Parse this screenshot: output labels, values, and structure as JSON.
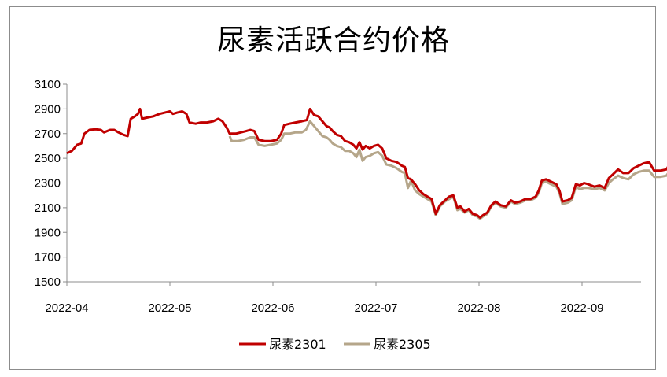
{
  "chart_data": {
    "type": "line",
    "title": "尿素活跃合约价格",
    "xlabel": "",
    "ylabel": "",
    "ylim": [
      1500,
      3100
    ],
    "yticks": [
      3100,
      2900,
      2700,
      2500,
      2300,
      2100,
      1900,
      1700,
      1500
    ],
    "xticks": [
      "2022-04",
      "2022-05",
      "2022-06",
      "2022-07",
      "2022-08",
      "2022-09"
    ],
    "xrange_months": [
      0,
      5.6
    ],
    "grid": false,
    "legend_position": "bottom",
    "series": [
      {
        "name": "尿素2301",
        "color": "#c00000",
        "points": [
          [
            0.0,
            2540
          ],
          [
            0.05,
            2560
          ],
          [
            0.1,
            2610
          ],
          [
            0.14,
            2620
          ],
          [
            0.17,
            2700
          ],
          [
            0.22,
            2730
          ],
          [
            0.28,
            2735
          ],
          [
            0.33,
            2730
          ],
          [
            0.36,
            2710
          ],
          [
            0.42,
            2730
          ],
          [
            0.46,
            2730
          ],
          [
            0.5,
            2710
          ],
          [
            0.55,
            2690
          ],
          [
            0.59,
            2680
          ],
          [
            0.62,
            2820
          ],
          [
            0.66,
            2840
          ],
          [
            0.69,
            2860
          ],
          [
            0.71,
            2900
          ],
          [
            0.73,
            2820
          ],
          [
            0.78,
            2830
          ],
          [
            0.84,
            2840
          ],
          [
            0.9,
            2860
          ],
          [
            0.95,
            2870
          ],
          [
            1.0,
            2880
          ],
          [
            1.03,
            2860
          ],
          [
            1.07,
            2870
          ],
          [
            1.12,
            2880
          ],
          [
            1.16,
            2860
          ],
          [
            1.19,
            2790
          ],
          [
            1.25,
            2780
          ],
          [
            1.3,
            2790
          ],
          [
            1.36,
            2790
          ],
          [
            1.42,
            2800
          ],
          [
            1.47,
            2820
          ],
          [
            1.51,
            2800
          ],
          [
            1.55,
            2750
          ],
          [
            1.58,
            2700
          ],
          [
            1.64,
            2700
          ],
          [
            1.69,
            2710
          ],
          [
            1.74,
            2720
          ],
          [
            1.78,
            2730
          ],
          [
            1.82,
            2720
          ],
          [
            1.86,
            2650
          ],
          [
            1.92,
            2640
          ],
          [
            1.98,
            2640
          ],
          [
            2.04,
            2650
          ],
          [
            2.08,
            2700
          ],
          [
            2.11,
            2770
          ],
          [
            2.16,
            2780
          ],
          [
            2.22,
            2790
          ],
          [
            2.28,
            2800
          ],
          [
            2.33,
            2810
          ],
          [
            2.36,
            2900
          ],
          [
            2.4,
            2850
          ],
          [
            2.44,
            2840
          ],
          [
            2.48,
            2800
          ],
          [
            2.52,
            2760
          ],
          [
            2.55,
            2750
          ],
          [
            2.58,
            2720
          ],
          [
            2.62,
            2690
          ],
          [
            2.66,
            2680
          ],
          [
            2.7,
            2640
          ],
          [
            2.74,
            2630
          ],
          [
            2.78,
            2610
          ],
          [
            2.81,
            2580
          ],
          [
            2.84,
            2630
          ],
          [
            2.87,
            2570
          ],
          [
            2.9,
            2600
          ],
          [
            2.94,
            2580
          ],
          [
            2.98,
            2600
          ],
          [
            3.02,
            2610
          ],
          [
            3.06,
            2580
          ],
          [
            3.1,
            2500
          ],
          [
            3.15,
            2480
          ],
          [
            3.2,
            2470
          ],
          [
            3.25,
            2440
          ],
          [
            3.28,
            2430
          ],
          [
            3.31,
            2340
          ],
          [
            3.34,
            2330
          ],
          [
            3.38,
            2290
          ],
          [
            3.42,
            2240
          ],
          [
            3.46,
            2210
          ],
          [
            3.5,
            2190
          ],
          [
            3.54,
            2170
          ],
          [
            3.58,
            2050
          ],
          [
            3.62,
            2120
          ],
          [
            3.67,
            2160
          ],
          [
            3.71,
            2190
          ],
          [
            3.75,
            2200
          ],
          [
            3.79,
            2100
          ],
          [
            3.82,
            2110
          ],
          [
            3.86,
            2070
          ],
          [
            3.9,
            2090
          ],
          [
            3.94,
            2050
          ],
          [
            3.98,
            2040
          ],
          [
            4.01,
            2020
          ],
          [
            4.04,
            2040
          ],
          [
            4.08,
            2060
          ],
          [
            4.12,
            2120
          ],
          [
            4.16,
            2150
          ],
          [
            4.21,
            2120
          ],
          [
            4.26,
            2110
          ],
          [
            4.31,
            2160
          ],
          [
            4.35,
            2140
          ],
          [
            4.4,
            2150
          ],
          [
            4.45,
            2170
          ],
          [
            4.5,
            2170
          ],
          [
            4.55,
            2190
          ],
          [
            4.58,
            2240
          ],
          [
            4.61,
            2320
          ],
          [
            4.65,
            2330
          ],
          [
            4.7,
            2310
          ],
          [
            4.75,
            2290
          ],
          [
            4.78,
            2240
          ],
          [
            4.81,
            2150
          ],
          [
            4.86,
            2160
          ],
          [
            4.9,
            2180
          ],
          [
            4.94,
            2290
          ],
          [
            4.98,
            2280
          ],
          [
            5.02,
            2300
          ],
          [
            5.06,
            2290
          ],
          [
            5.12,
            2270
          ],
          [
            5.17,
            2280
          ],
          [
            5.22,
            2260
          ],
          [
            5.26,
            2340
          ],
          [
            5.3,
            2370
          ],
          [
            5.35,
            2410
          ],
          [
            5.4,
            2380
          ],
          [
            5.45,
            2380
          ],
          [
            5.5,
            2420
          ],
          [
            5.55,
            2440
          ],
          [
            5.6,
            2460
          ],
          [
            5.65,
            2470
          ],
          [
            5.7,
            2400
          ],
          [
            5.76,
            2400
          ],
          [
            5.82,
            2410
          ],
          [
            5.86,
            2470
          ],
          [
            5.9,
            2450
          ],
          [
            5.95,
            2430
          ],
          [
            6.0,
            2420
          ],
          [
            6.03,
            2440
          ]
        ]
      },
      {
        "name": "尿素2305",
        "color": "#b5a68a",
        "points": [
          [
            1.58,
            2680
          ],
          [
            1.6,
            2640
          ],
          [
            1.66,
            2640
          ],
          [
            1.72,
            2650
          ],
          [
            1.78,
            2670
          ],
          [
            1.82,
            2670
          ],
          [
            1.86,
            2610
          ],
          [
            1.92,
            2600
          ],
          [
            1.98,
            2610
          ],
          [
            2.04,
            2620
          ],
          [
            2.08,
            2650
          ],
          [
            2.11,
            2700
          ],
          [
            2.16,
            2700
          ],
          [
            2.22,
            2710
          ],
          [
            2.28,
            2710
          ],
          [
            2.32,
            2730
          ],
          [
            2.36,
            2800
          ],
          [
            2.4,
            2760
          ],
          [
            2.44,
            2720
          ],
          [
            2.48,
            2680
          ],
          [
            2.52,
            2670
          ],
          [
            2.55,
            2650
          ],
          [
            2.58,
            2620
          ],
          [
            2.62,
            2600
          ],
          [
            2.66,
            2590
          ],
          [
            2.7,
            2560
          ],
          [
            2.74,
            2560
          ],
          [
            2.78,
            2540
          ],
          [
            2.81,
            2510
          ],
          [
            2.84,
            2570
          ],
          [
            2.87,
            2480
          ],
          [
            2.9,
            2510
          ],
          [
            2.94,
            2520
          ],
          [
            2.98,
            2540
          ],
          [
            3.02,
            2550
          ],
          [
            3.06,
            2520
          ],
          [
            3.1,
            2450
          ],
          [
            3.15,
            2440
          ],
          [
            3.2,
            2420
          ],
          [
            3.25,
            2390
          ],
          [
            3.28,
            2380
          ],
          [
            3.31,
            2260
          ],
          [
            3.34,
            2320
          ],
          [
            3.38,
            2240
          ],
          [
            3.42,
            2210
          ],
          [
            3.46,
            2190
          ],
          [
            3.5,
            2170
          ],
          [
            3.54,
            2150
          ],
          [
            3.58,
            2040
          ],
          [
            3.62,
            2110
          ],
          [
            3.67,
            2150
          ],
          [
            3.71,
            2170
          ],
          [
            3.75,
            2190
          ],
          [
            3.79,
            2080
          ],
          [
            3.82,
            2090
          ],
          [
            3.86,
            2060
          ],
          [
            3.9,
            2080
          ],
          [
            3.94,
            2040
          ],
          [
            3.98,
            2030
          ],
          [
            4.01,
            2010
          ],
          [
            4.04,
            2030
          ],
          [
            4.08,
            2050
          ],
          [
            4.12,
            2110
          ],
          [
            4.16,
            2140
          ],
          [
            4.21,
            2110
          ],
          [
            4.26,
            2100
          ],
          [
            4.31,
            2150
          ],
          [
            4.35,
            2130
          ],
          [
            4.4,
            2140
          ],
          [
            4.45,
            2160
          ],
          [
            4.5,
            2160
          ],
          [
            4.55,
            2180
          ],
          [
            4.58,
            2220
          ],
          [
            4.61,
            2300
          ],
          [
            4.65,
            2310
          ],
          [
            4.7,
            2290
          ],
          [
            4.75,
            2270
          ],
          [
            4.78,
            2220
          ],
          [
            4.81,
            2130
          ],
          [
            4.86,
            2140
          ],
          [
            4.9,
            2160
          ],
          [
            4.94,
            2270
          ],
          [
            4.98,
            2250
          ],
          [
            5.02,
            2260
          ],
          [
            5.06,
            2260
          ],
          [
            5.12,
            2250
          ],
          [
            5.17,
            2260
          ],
          [
            5.22,
            2240
          ],
          [
            5.26,
            2300
          ],
          [
            5.3,
            2330
          ],
          [
            5.35,
            2360
          ],
          [
            5.4,
            2340
          ],
          [
            5.45,
            2330
          ],
          [
            5.5,
            2370
          ],
          [
            5.55,
            2390
          ],
          [
            5.6,
            2400
          ],
          [
            5.65,
            2400
          ],
          [
            5.7,
            2350
          ],
          [
            5.76,
            2350
          ],
          [
            5.82,
            2360
          ],
          [
            5.86,
            2410
          ],
          [
            5.9,
            2400
          ],
          [
            5.95,
            2380
          ],
          [
            6.0,
            2360
          ],
          [
            6.03,
            2380
          ]
        ]
      }
    ]
  }
}
